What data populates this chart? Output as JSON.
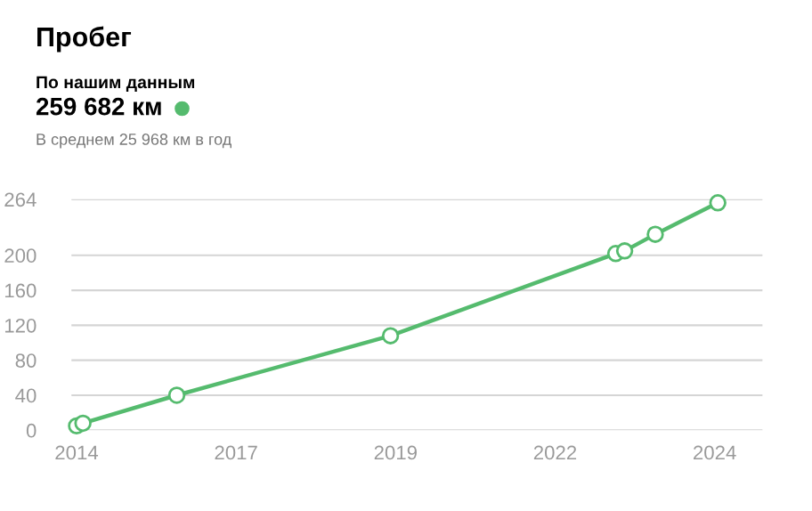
{
  "chart_data": {
    "type": "line",
    "title": "Пробег",
    "subtitle": "По нашим данным",
    "annotations": [
      "259 682 км",
      "В среднем 25 968 км в год"
    ],
    "series": [
      {
        "color": "#55bb6e",
        "x": [
          2014.0,
          2014.1,
          2015.57,
          2018.92,
          2022.45,
          2022.59,
          2023.07,
          2024.05
        ],
        "values": [
          5,
          8,
          40,
          108,
          202,
          205,
          224,
          260
        ]
      }
    ],
    "xlim": [
      2013.92,
      2024.75
    ],
    "xticks": [
      {
        "value": 2014.0,
        "label": "2014"
      },
      {
        "value": 2016.5,
        "label": "2017"
      },
      {
        "value": 2019.0,
        "label": "2019"
      },
      {
        "value": 2021.5,
        "label": "2022"
      },
      {
        "value": 2024.0,
        "label": "2024"
      }
    ],
    "ylim": [
      0,
      264
    ],
    "yticks": [
      0,
      40,
      80,
      120,
      160,
      200,
      264
    ],
    "grid": "y",
    "marker": "circle",
    "line_style": "solid",
    "legend": false
  }
}
